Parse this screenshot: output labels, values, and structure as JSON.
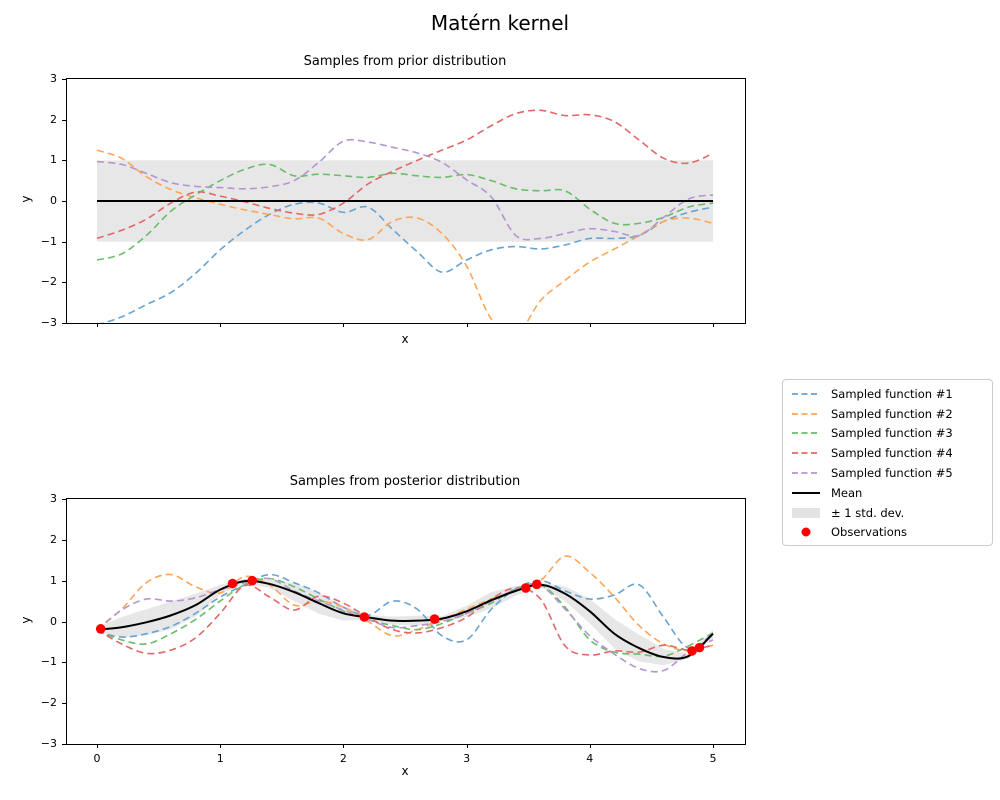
{
  "figure": {
    "title": "Matérn kernel",
    "background": "#ffffff"
  },
  "colors": {
    "sample1": "#68a3d2",
    "sample2": "#ffa556",
    "sample3": "#6bbc6b",
    "sample4": "#e26868",
    "sample5": "#b495d1",
    "mean": "#000000",
    "band": "#e7e7e7",
    "observations": "#ff0000",
    "axes_border": "#000000",
    "legend_border": "#cccccc"
  },
  "legend": {
    "entries": [
      {
        "label": "Sampled function #1",
        "color": "#68a3d2",
        "type": "dashed"
      },
      {
        "label": "Sampled function #2",
        "color": "#ffa556",
        "type": "dashed"
      },
      {
        "label": "Sampled function #3",
        "color": "#6bbc6b",
        "type": "dashed"
      },
      {
        "label": "Sampled function #4",
        "color": "#e26868",
        "type": "dashed"
      },
      {
        "label": "Sampled function #5",
        "color": "#b495d1",
        "type": "dashed"
      },
      {
        "label": "Mean",
        "color": "#000000",
        "type": "solid"
      },
      {
        "label": "± 1 std. dev.",
        "color": "#e3e3e3",
        "type": "patch"
      },
      {
        "label": "Observations",
        "color": "#ff0000",
        "type": "dot"
      }
    ]
  },
  "chart_data": [
    {
      "type": "line",
      "title": "Samples from prior distribution",
      "xlabel": "x",
      "ylabel": "y",
      "xlim": [
        -0.25,
        5.25
      ],
      "ylim": [
        -3,
        3
      ],
      "xticks": [
        0,
        1,
        2,
        3,
        4,
        5
      ],
      "xtick_labels": [],
      "yticks": [
        3,
        2,
        1,
        0,
        -1,
        -2,
        -3
      ],
      "ytick_labels": [
        "3",
        "2",
        "1",
        "0",
        "−1",
        "−2",
        "−3"
      ],
      "grid": false,
      "x": [
        0,
        0.2,
        0.4,
        0.6,
        0.8,
        1,
        1.2,
        1.4,
        1.6,
        1.8,
        2,
        2.2,
        2.4,
        2.6,
        2.8,
        3,
        3.2,
        3.4,
        3.6,
        3.8,
        4,
        4.2,
        4.4,
        4.6,
        4.8,
        5
      ],
      "series": [
        {
          "name": "Sampled function #1",
          "color": "#68a3d2",
          "y": [
            -3.05,
            -2.85,
            -2.55,
            -2.25,
            -1.78,
            -1.2,
            -0.72,
            -0.33,
            -0.08,
            -0.05,
            -0.28,
            -0.15,
            -0.7,
            -1.25,
            -1.75,
            -1.45,
            -1.2,
            -1.12,
            -1.18,
            -1.08,
            -0.92,
            -0.92,
            -0.85,
            -0.5,
            -0.28,
            -0.15
          ]
        },
        {
          "name": "Sampled function #2",
          "color": "#ffa556",
          "y": [
            1.25,
            1.05,
            0.6,
            0.28,
            0.08,
            -0.08,
            -0.22,
            -0.33,
            -0.44,
            -0.42,
            -0.8,
            -0.95,
            -0.5,
            -0.42,
            -0.8,
            -1.6,
            -2.9,
            -3.3,
            -2.45,
            -1.95,
            -1.5,
            -1.18,
            -0.85,
            -0.5,
            -0.42,
            -0.55
          ]
        },
        {
          "name": "Sampled function #3",
          "color": "#6bbc6b",
          "y": [
            -1.45,
            -1.3,
            -0.85,
            -0.25,
            0.15,
            0.5,
            0.78,
            0.9,
            0.62,
            0.66,
            0.62,
            0.58,
            0.68,
            0.62,
            0.58,
            0.65,
            0.5,
            0.3,
            0.25,
            0.25,
            -0.2,
            -0.55,
            -0.55,
            -0.4,
            -0.15,
            -0.05
          ]
        },
        {
          "name": "Sampled function #4",
          "color": "#e26868",
          "y": [
            -0.92,
            -0.72,
            -0.45,
            -0.05,
            0.22,
            0.12,
            -0.02,
            -0.18,
            -0.3,
            -0.33,
            -0.05,
            0.42,
            0.73,
            1.0,
            1.25,
            1.5,
            1.85,
            2.15,
            2.23,
            2.1,
            2.12,
            1.95,
            1.5,
            1.05,
            0.93,
            1.17
          ]
        },
        {
          "name": "Sampled function #5",
          "color": "#b495d1",
          "y": [
            0.97,
            0.9,
            0.68,
            0.45,
            0.36,
            0.33,
            0.3,
            0.35,
            0.5,
            0.95,
            1.47,
            1.45,
            1.32,
            1.18,
            0.95,
            0.52,
            0.1,
            -0.85,
            -0.92,
            -0.8,
            -0.68,
            -0.75,
            -0.85,
            -0.4,
            0.05,
            0.15
          ]
        }
      ],
      "mean": {
        "label": "Mean",
        "color": "#000000",
        "constant": 0
      },
      "band": {
        "label": "± 1 std. dev.",
        "color": "#e7e7e7",
        "lo": -1,
        "hi": 1
      }
    },
    {
      "type": "line",
      "title": "Samples from posterior distribution",
      "xlabel": "x",
      "ylabel": "y",
      "xlim": [
        -0.25,
        5.25
      ],
      "ylim": [
        -3,
        3
      ],
      "xticks": [
        0,
        1,
        2,
        3,
        4,
        5
      ],
      "xtick_labels": [
        "0",
        "1",
        "2",
        "3",
        "4",
        "5"
      ],
      "yticks": [
        3,
        2,
        1,
        0,
        -1,
        -2,
        -3
      ],
      "ytick_labels": [
        "3",
        "2",
        "1",
        "0",
        "−1",
        "−2",
        "−3"
      ],
      "grid": false,
      "x": [
        0,
        0.2,
        0.4,
        0.6,
        0.8,
        1,
        1.2,
        1.4,
        1.6,
        1.8,
        2,
        2.2,
        2.4,
        2.6,
        2.8,
        3,
        3.2,
        3.4,
        3.6,
        3.8,
        4,
        4.2,
        4.4,
        4.6,
        4.8,
        5
      ],
      "series": [
        {
          "name": "Sampled function #1",
          "color": "#68a3d2",
          "y": [
            -0.25,
            -0.38,
            -0.3,
            -0.12,
            0.2,
            0.6,
            0.9,
            1.15,
            0.95,
            0.7,
            0.35,
            0.15,
            0.5,
            0.3,
            -0.35,
            -0.45,
            0.3,
            0.8,
            1.0,
            0.75,
            0.55,
            0.65,
            0.9,
            0.1,
            -0.65,
            -0.3
          ]
        },
        {
          "name": "Sampled function #2",
          "color": "#ffa556",
          "y": [
            -0.2,
            0.3,
            0.95,
            1.15,
            0.85,
            0.7,
            1.1,
            0.9,
            0.4,
            0.5,
            0.35,
            0.0,
            -0.35,
            -0.2,
            0.05,
            0.3,
            0.55,
            0.75,
            1.0,
            1.6,
            1.2,
            0.6,
            -0.1,
            -0.55,
            -0.72,
            -0.58
          ]
        },
        {
          "name": "Sampled function #3",
          "color": "#6bbc6b",
          "y": [
            -0.22,
            -0.45,
            -0.55,
            -0.3,
            0.05,
            0.5,
            0.9,
            1.05,
            0.85,
            0.55,
            0.25,
            0.05,
            -0.1,
            -0.2,
            -0.05,
            0.2,
            0.45,
            0.8,
            0.9,
            0.35,
            -0.45,
            -0.75,
            -0.8,
            -0.85,
            -0.6,
            -0.28
          ]
        },
        {
          "name": "Sampled function #4",
          "color": "#e26868",
          "y": [
            -0.2,
            -0.55,
            -0.78,
            -0.7,
            -0.4,
            0.2,
            0.88,
            0.6,
            0.28,
            0.62,
            0.45,
            0.1,
            -0.2,
            -0.28,
            -0.15,
            0.1,
            0.55,
            0.82,
            0.55,
            -0.6,
            -0.82,
            -0.72,
            -0.75,
            -0.58,
            -0.7,
            -0.58
          ]
        },
        {
          "name": "Sampled function #5",
          "color": "#b495d1",
          "y": [
            -0.2,
            0.28,
            0.55,
            0.5,
            0.58,
            0.78,
            0.95,
            1.05,
            0.75,
            0.5,
            0.28,
            0.05,
            -0.15,
            -0.1,
            0.0,
            0.2,
            0.5,
            0.78,
            0.88,
            0.3,
            -0.35,
            -0.8,
            -1.15,
            -1.2,
            -0.75,
            -0.45
          ]
        }
      ],
      "mean": {
        "label": "Mean",
        "color": "#000000",
        "y": [
          -0.2,
          -0.14,
          -0.02,
          0.15,
          0.4,
          0.78,
          0.99,
          0.92,
          0.72,
          0.45,
          0.2,
          0.1,
          0.02,
          0.02,
          0.07,
          0.25,
          0.52,
          0.75,
          0.9,
          0.68,
          0.25,
          -0.3,
          -0.65,
          -0.87,
          -0.85,
          -0.3
        ]
      },
      "band": {
        "label": "± 1 std. dev.",
        "color": "#e7e7e7",
        "halfwidth": [
          0.06,
          0.25,
          0.32,
          0.34,
          0.28,
          0.12,
          0.05,
          0.1,
          0.22,
          0.26,
          0.18,
          0.06,
          0.1,
          0.12,
          0.06,
          0.14,
          0.2,
          0.12,
          0.05,
          0.18,
          0.3,
          0.36,
          0.33,
          0.2,
          0.06,
          0.1
        ]
      },
      "observations": {
        "label": "Observations",
        "color": "#ff0000",
        "x": [
          0.03,
          1.1,
          1.26,
          2.17,
          2.74,
          3.48,
          3.57,
          4.83,
          4.89
        ],
        "y": [
          -0.18,
          0.93,
          1.0,
          0.11,
          0.06,
          0.82,
          0.91,
          -0.72,
          -0.64
        ]
      }
    }
  ]
}
